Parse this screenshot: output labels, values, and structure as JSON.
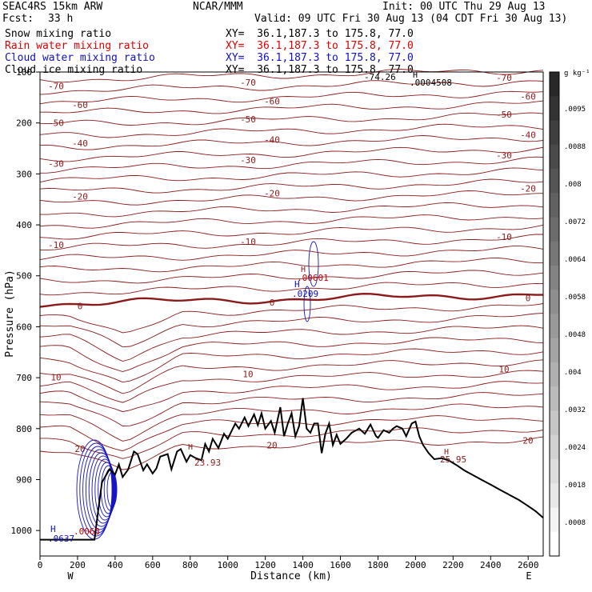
{
  "header": {
    "model": "SEAC4RS 15km ARW",
    "org": "NCAR/MMM",
    "init": "Init: 00 UTC Thu 29 Aug 13",
    "fcst_label": "Fcst:",
    "fcst_value": "33 h",
    "valid": "Valid: 09 UTC Fri 30 Aug 13 (04 CDT Fri 30 Aug 13)"
  },
  "fields": [
    {
      "name": "Snow mixing ratio",
      "color": "#000000",
      "xy": "XY=  36.1,187.3 to 175.8, 77.0"
    },
    {
      "name": "Rain water mixing ratio",
      "color": "#e00000",
      "xy": "XY=  36.1,187.3 to 175.8, 77.0"
    },
    {
      "name": "Cloud water mixing ratio",
      "color": "#1010c0",
      "xy": "XY=  36.1,187.3 to 175.8, 77.0"
    },
    {
      "name": "Cloud ice mixing ratio",
      "color": "#000000",
      "xy": "XY=  36.1,187.3 to 175.8, 77.0"
    }
  ],
  "chart_data": {
    "type": "line",
    "xlabel": "Distance (km)",
    "ylabel": "Pressure (hPa)",
    "xlim": [
      0,
      2680
    ],
    "ylim": [
      1050,
      100
    ],
    "x_ticks": [
      0,
      200,
      400,
      600,
      800,
      1000,
      1200,
      1400,
      1600,
      1800,
      2000,
      2200,
      2400,
      2600
    ],
    "y_ticks": [
      100,
      200,
      300,
      400,
      500,
      600,
      700,
      800,
      900,
      1000
    ],
    "x_end_labels": {
      "left": "W",
      "right": "E"
    },
    "terrain": {
      "x": [
        0,
        20,
        120,
        200,
        290,
        310,
        330,
        370,
        400,
        420,
        440,
        470,
        500,
        520,
        550,
        570,
        600,
        620,
        640,
        680,
        700,
        730,
        750,
        780,
        800,
        830,
        860,
        880,
        900,
        920,
        950,
        980,
        1000,
        1040,
        1060,
        1090,
        1110,
        1140,
        1160,
        1180,
        1200,
        1230,
        1250,
        1280,
        1300,
        1320,
        1340,
        1360,
        1380,
        1400,
        1420,
        1440,
        1460,
        1480,
        1500,
        1520,
        1540,
        1560,
        1580,
        1600,
        1630,
        1660,
        1700,
        1730,
        1760,
        1790,
        1800,
        1830,
        1860,
        1880,
        1900,
        1930,
        1950,
        1980,
        2000,
        2020,
        2040,
        2070,
        2100,
        2140,
        2180,
        2220,
        2260,
        2300,
        2350,
        2400,
        2450,
        2500,
        2550,
        2600,
        2640,
        2680
      ],
      "y": [
        1018,
        1018,
        1018,
        1018,
        1018,
        960,
        905,
        880,
        890,
        870,
        895,
        880,
        845,
        850,
        882,
        870,
        888,
        878,
        855,
        850,
        880,
        845,
        840,
        865,
        852,
        858,
        862,
        830,
        845,
        820,
        838,
        810,
        820,
        790,
        800,
        778,
        795,
        772,
        793,
        770,
        800,
        785,
        808,
        758,
        815,
        790,
        770,
        815,
        795,
        740,
        800,
        808,
        790,
        790,
        848,
        810,
        790,
        832,
        812,
        830,
        820,
        808,
        800,
        810,
        792,
        815,
        818,
        803,
        808,
        800,
        795,
        800,
        815,
        790,
        786,
        815,
        832,
        848,
        860,
        858,
        863,
        872,
        882,
        890,
        900,
        910,
        920,
        930,
        940,
        952,
        962,
        975
      ]
    },
    "temperature_contours": [
      {
        "label": "-70",
        "y": 128
      },
      {
        "label": "-60",
        "y": 165
      },
      {
        "label": "-50",
        "y": 200
      },
      {
        "label": "-40",
        "y": 240
      },
      {
        "label": "-30",
        "y": 280
      },
      {
        "label": "-20",
        "y": 345
      },
      {
        "label": "-10",
        "y": 440
      },
      {
        "label": "0",
        "y": 560
      },
      {
        "label": "10",
        "y": 700
      },
      {
        "label": "20",
        "y": 840
      }
    ],
    "labels": [
      "-74.26",
      ".0004508",
      ".00601",
      ".0209",
      "23.93",
      "25.95",
      ".0063",
      ".0637",
      "H",
      "H",
      "H",
      "H",
      "H",
      "H"
    ],
    "colorbar": {
      "unit": "g kg⁻¹",
      "ticks": [
        ".0095",
        ".0088",
        ".008",
        ".0072",
        ".0064",
        ".0058",
        ".0048",
        ".004",
        ".0032",
        ".0024",
        ".0018",
        ".0008"
      ]
    }
  }
}
